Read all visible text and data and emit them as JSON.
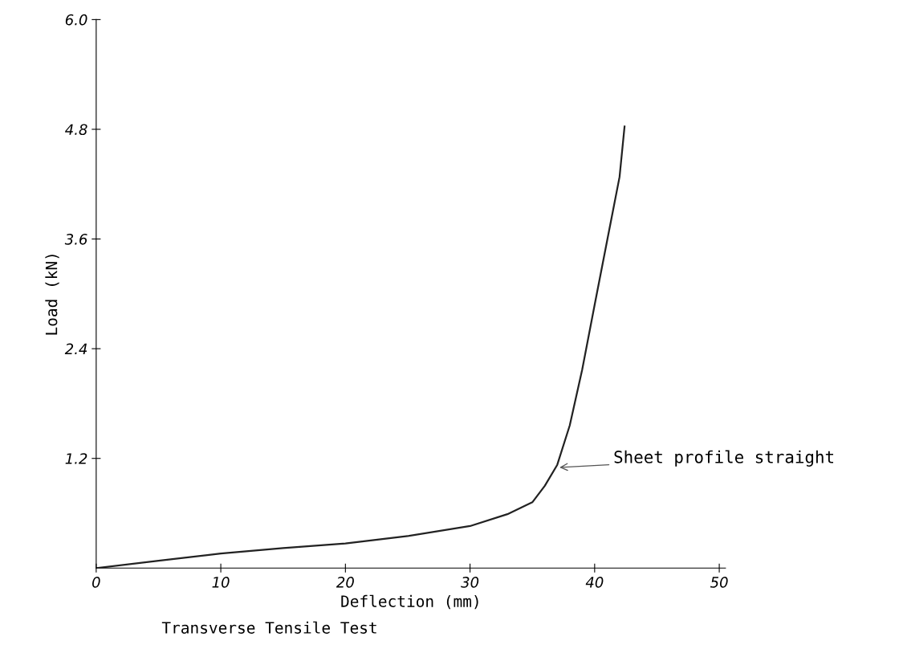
{
  "chart_data": {
    "type": "line",
    "xlabel": "Deflection (mm)",
    "ylabel": "Load (kN)",
    "x": [
      0,
      5,
      10,
      15,
      20,
      25,
      30,
      33,
      35,
      36,
      37,
      38,
      39,
      40,
      41,
      42,
      42.4
    ],
    "series": [
      {
        "color": "#222222",
        "values": [
          0,
          0.08,
          0.16,
          0.22,
          0.27,
          0.35,
          0.46,
          0.59,
          0.72,
          0.9,
          1.13,
          1.56,
          2.17,
          2.88,
          3.58,
          4.28,
          4.83
        ]
      }
    ],
    "xlim": [
      0,
      50.5
    ],
    "ylim": [
      0,
      6.0
    ],
    "xticks": [
      0,
      10,
      20,
      30,
      40,
      50
    ],
    "yticks": [
      1.2,
      2.4,
      3.6,
      4.8,
      {
        "value": 6,
        "label": "6.0"
      }
    ],
    "annotations": [
      {
        "text": "Sheet profile straight",
        "x": 37,
        "y": 1.1
      },
      "Transverse Tensile Test"
    ],
    "grid": false,
    "legend": false,
    "marker": "none",
    "line_style": "solid"
  }
}
